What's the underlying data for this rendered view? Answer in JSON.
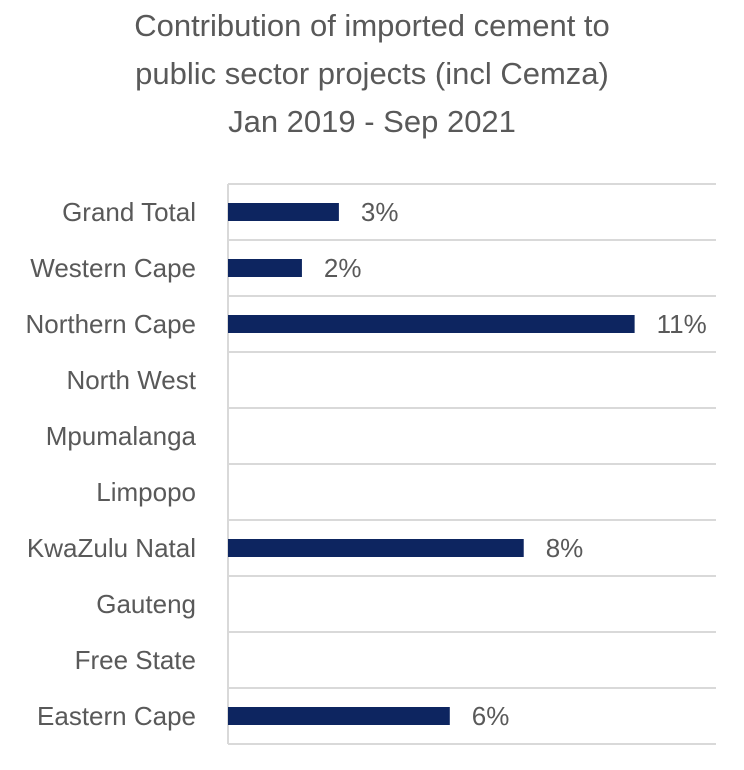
{
  "chart_data": {
    "type": "bar",
    "orientation": "horizontal",
    "title_lines": [
      "Contribution of imported cement to",
      "public sector projects (incl Cemza)",
      "Jan 2019 - Sep 2021"
    ],
    "categories": [
      "Grand Total",
      "Western Cape",
      "Northern Cape",
      "North West",
      "Mpumalanga",
      "Limpopo",
      "KwaZulu Natal",
      "Gauteng",
      "Free State",
      "Eastern Cape"
    ],
    "values": [
      3,
      2,
      11,
      null,
      null,
      null,
      8,
      null,
      null,
      6
    ],
    "data_labels": [
      "3%",
      "2%",
      "11%",
      "",
      "",
      "",
      "8%",
      "",
      "",
      "6%"
    ],
    "unit": "%",
    "xlim": [
      0,
      14.5
    ],
    "grid": "horizontal category separators",
    "legend": "none",
    "colors": {
      "bar": "#0d2560",
      "grid": "#d9d9d9",
      "text": "#595959"
    }
  }
}
